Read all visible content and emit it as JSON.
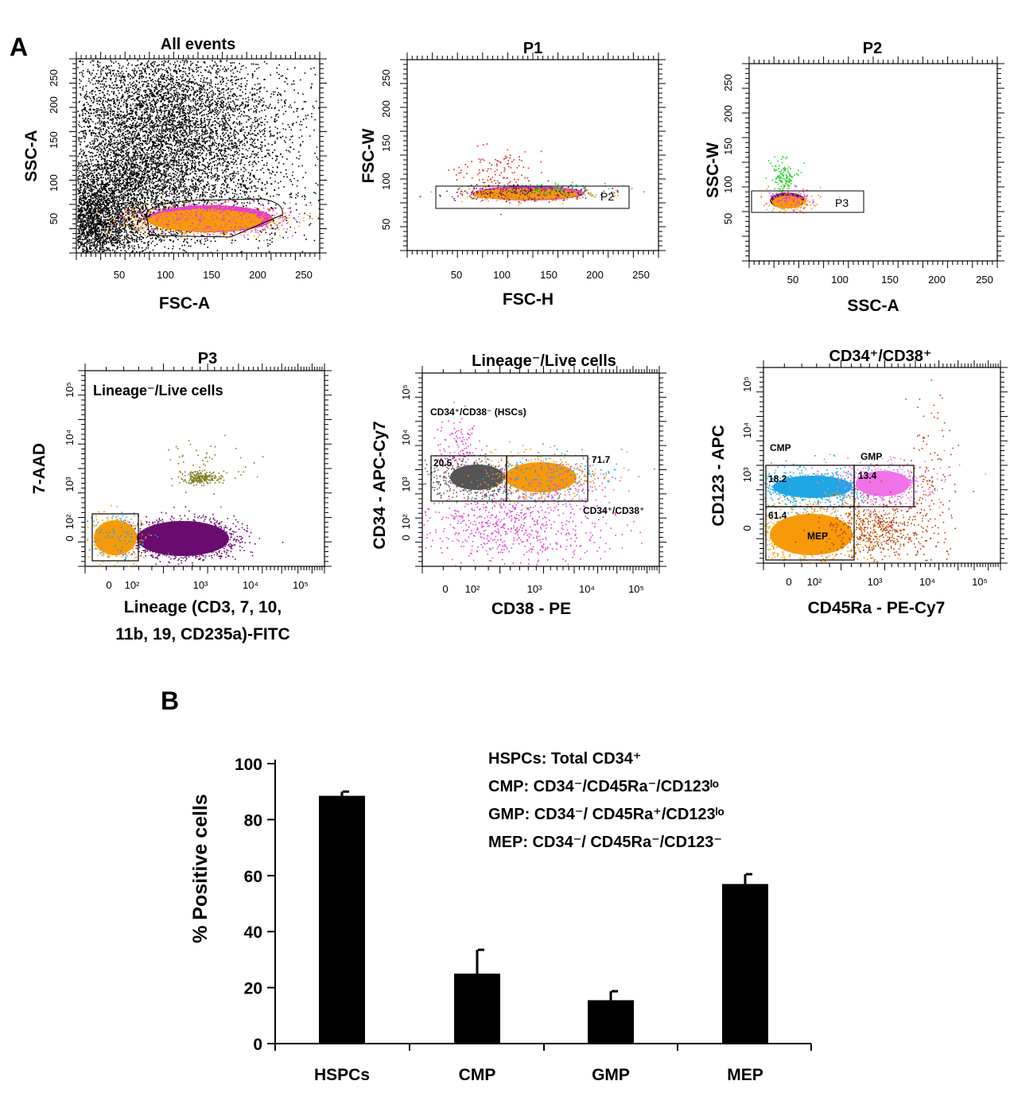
{
  "panels": {
    "a": "A",
    "b": "B"
  },
  "flow": [
    {
      "title": "All events",
      "xlabel": "FSC-A",
      "ylabel": "SSC-A",
      "xticks": [
        "50",
        "100",
        "150",
        "200",
        "250"
      ],
      "yticks": [
        "250",
        "200",
        "150",
        "100",
        "50"
      ]
    },
    {
      "title": "P1",
      "xlabel": "FSC-H",
      "ylabel": "FSC-W",
      "xticks": [
        "50",
        "100",
        "150",
        "200",
        "250"
      ],
      "yticks": [
        "250",
        "200",
        "150",
        "100",
        "50"
      ],
      "gate": "P2"
    },
    {
      "title": "P2",
      "xlabel": "SSC-A",
      "ylabel": "SSC-W",
      "xticks": [
        "50",
        "100",
        "150",
        "200",
        "250"
      ],
      "yticks": [
        "250",
        "200",
        "150",
        "100",
        "50"
      ],
      "gate": "P3"
    },
    {
      "title": "P3",
      "xlabel_line1": "Lineage (CD3, 7, 10,",
      "xlabel_line2": "11b, 19, CD235a)-FITC",
      "ylabel": "7-AAD",
      "xticks": [
        "0",
        "10²",
        "10³",
        "10⁴",
        "10⁵"
      ],
      "yticks": [
        "10⁵",
        "10⁴",
        "10³",
        "10²",
        "0"
      ],
      "inner_label": "Lineage⁻/Live cells"
    },
    {
      "title": "Lineage⁻/Live cells",
      "xlabel": "CD38 - PE",
      "ylabel": "CD34 - APC-Cy7",
      "xticks": [
        "0",
        "10²",
        "10³",
        "10⁴",
        "10⁵"
      ],
      "yticks": [
        "10⁵",
        "10⁴",
        "10³",
        "10²",
        "0"
      ],
      "gate_hsc": "CD34⁺/CD38⁻ (HSCs)",
      "gate_pos": "CD34⁺/CD38⁺",
      "pct_left": "20.5",
      "pct_right": "71.7"
    },
    {
      "title": "CD34⁺/CD38⁺",
      "xlabel": "CD45Ra - PE-Cy7",
      "ylabel": "CD123 - APC",
      "xticks": [
        "0",
        "10²",
        "10³",
        "10⁴",
        "10⁵"
      ],
      "yticks": [
        "10⁵",
        "10⁴",
        "10³",
        "0"
      ],
      "cmp": "CMP",
      "gmp": "GMP",
      "mep": "MEP",
      "pct_cmp": "18.2",
      "pct_gmp": "13.4",
      "pct_mep": "61.4"
    }
  ],
  "colors": {
    "orange": "#f79a0a",
    "magenta": "#e33fd1",
    "purple": "#6a0b6f",
    "olive": "#7c7a1a",
    "gray": "#555555",
    "cyan": "#1ea6e6",
    "pink": "#ef72e6",
    "brown": "#b8400d",
    "green": "#22cc22",
    "red": "#e02222"
  },
  "chart_data": {
    "type": "bar",
    "categories": [
      "HSPCs",
      "CMP",
      "GMP",
      "MEP"
    ],
    "values": [
      88.5,
      25,
      15.5,
      57
    ],
    "errors": [
      1.5,
      8.5,
      3.2,
      3.5
    ],
    "ylabel": "% Positive cells",
    "ylim": [
      0,
      100
    ],
    "yticks": [
      "0",
      "20",
      "40",
      "60",
      "80",
      "100"
    ],
    "legend": [
      {
        "name": "HSPCs",
        "def": ": Total CD34⁺"
      },
      {
        "name": "CMP",
        "def": ": CD34⁻/CD45Ra⁻/CD123ˡᵒ"
      },
      {
        "name": "GMP",
        "def": ": CD34⁻/ CD45Ra⁺/CD123ˡᵒ"
      },
      {
        "name": "MEP",
        "def": ": CD34⁻/ CD45Ra⁻/CD123⁻"
      }
    ]
  }
}
